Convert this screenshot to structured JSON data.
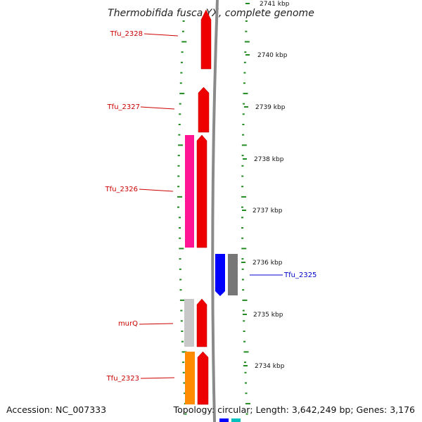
{
  "title": "Thermobifida fusca YX, complete genome",
  "footer": {
    "accession": "Accession: NC_007333",
    "info": "Topology: circular; Length: 3,642,249 bp; Genes: 3,176"
  },
  "kbp_labels": [
    "2741 kbp",
    "2740 kbp",
    "2739 kbp",
    "2738 kbp",
    "2737 kbp",
    "2736 kbp",
    "2735 kbp",
    "2734 kbp"
  ],
  "colors": {
    "red": "#ee0000",
    "pink": "#ff1493",
    "gray_light": "#c8c8c8",
    "gray_dark": "#777777",
    "orange": "#ff8c00",
    "blue": "#0000ff",
    "cyan": "#00bfbf",
    "tick_green": "#228b22",
    "label_red": "#cc0000",
    "label_blue": "#0000cc"
  },
  "left_labels": [
    {
      "text": "Tfu_2328",
      "color": "red"
    },
    {
      "text": "Tfu_2327",
      "color": "red"
    },
    {
      "text": "Tfu_2326",
      "color": "red"
    },
    {
      "text": "murQ",
      "color": "red"
    },
    {
      "text": "Tfu_2323",
      "color": "red"
    }
  ],
  "right_labels": [
    {
      "text": "Tfu_2325",
      "color": "blue"
    }
  ]
}
